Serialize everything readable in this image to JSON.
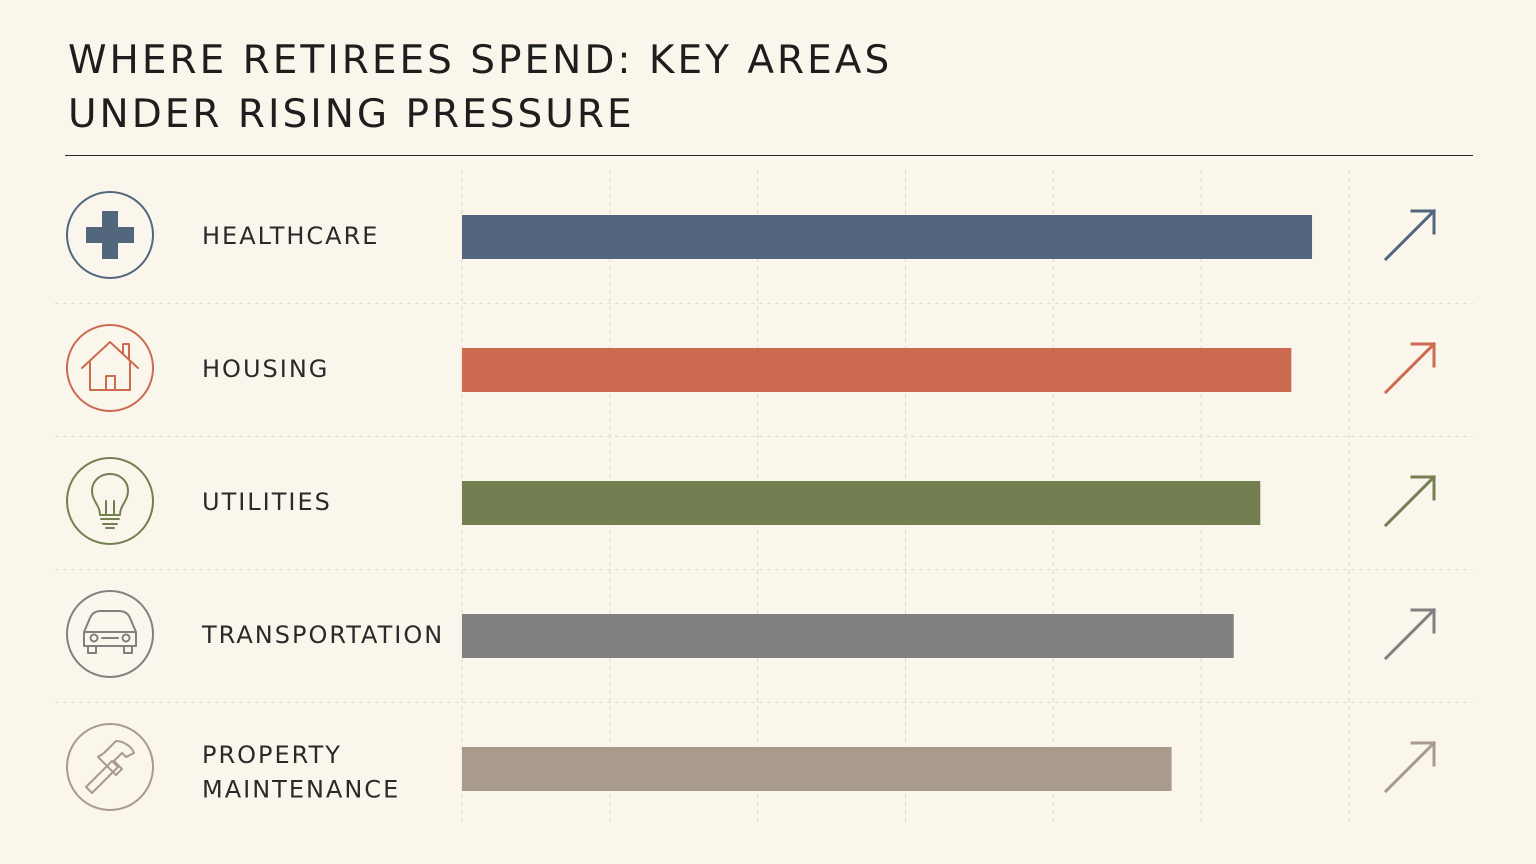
{
  "title": "WHERE RETIREES SPEND: KEY AREAS UNDER RISING PRESSURE",
  "chart_data": {
    "type": "bar",
    "orientation": "horizontal",
    "title": "WHERE RETIREES SPEND: KEY AREAS UNDER RISING PRESSURE",
    "categories": [
      "HEALTHCARE",
      "HOUSING",
      "UTILITIES",
      "TRANSPORTATION",
      "PROPERTY MAINTENANCE"
    ],
    "values": [
      5.75,
      5.61,
      5.4,
      5.22,
      4.8
    ],
    "xlim": [
      0,
      6
    ],
    "grid": true,
    "trend": [
      "up",
      "up",
      "up",
      "up",
      "up"
    ],
    "icons": [
      "plus-cross-icon",
      "house-icon",
      "lightbulb-icon",
      "car-icon",
      "hammer-icon"
    ],
    "colors": [
      "#52677e",
      "#cc6b50",
      "#737f50",
      "#808080",
      "#a89a8c"
    ]
  }
}
